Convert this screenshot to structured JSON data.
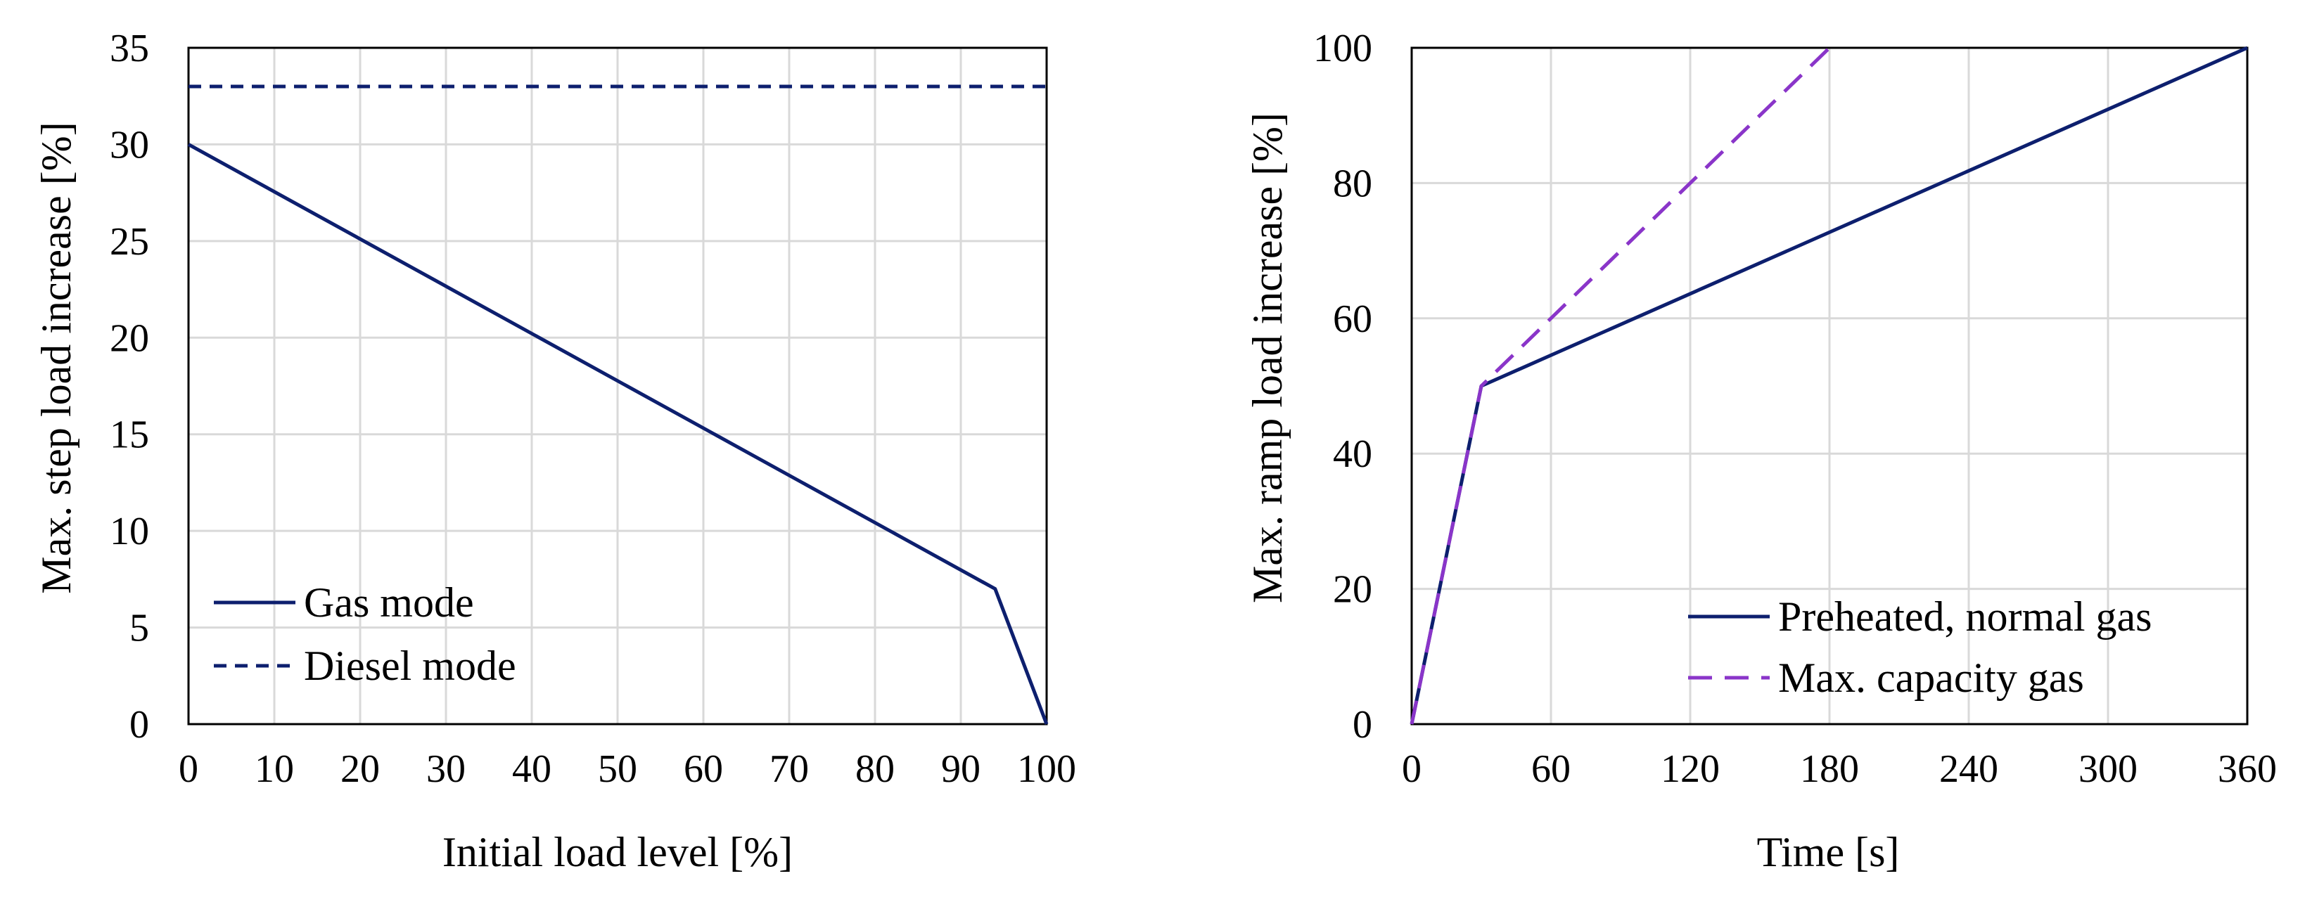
{
  "colors": {
    "grid": "#d9d9d9",
    "axis": "#000000",
    "navy": "#0d1f6e",
    "purple": "#8a35c9"
  },
  "chart_data": [
    {
      "type": "line",
      "title": "",
      "xlabel": "Initial load level [%]",
      "ylabel": "Max. step load increase [%]",
      "xlim": [
        0,
        100
      ],
      "ylim": [
        0,
        35
      ],
      "xticks": [
        0,
        10,
        20,
        30,
        40,
        50,
        60,
        70,
        80,
        90,
        100
      ],
      "yticks": [
        0,
        5,
        10,
        15,
        20,
        25,
        30,
        35
      ],
      "grid": true,
      "legend_position": "bottom-left",
      "series": [
        {
          "name": "Gas mode",
          "style": "solid",
          "color": "#0d1f6e",
          "points": [
            [
              0,
              30
            ],
            [
              94,
              7
            ],
            [
              100,
              0
            ]
          ]
        },
        {
          "name": "Diesel mode",
          "style": "dashed",
          "color": "#0d1f6e",
          "points": [
            [
              0,
              33
            ],
            [
              100,
              33
            ]
          ]
        }
      ]
    },
    {
      "type": "line",
      "title": "",
      "xlabel": "Time [s]",
      "ylabel": "Max. ramp load increase [%]",
      "xlim": [
        0,
        360
      ],
      "ylim": [
        0,
        100
      ],
      "xticks": [
        0,
        60,
        120,
        180,
        240,
        300,
        360
      ],
      "yticks": [
        0,
        20,
        40,
        60,
        80,
        100
      ],
      "grid": true,
      "legend_position": "bottom-right",
      "series": [
        {
          "name": "Preheated, normal gas",
          "style": "solid",
          "color": "#0d1f6e",
          "points": [
            [
              0,
              0
            ],
            [
              30,
              50
            ],
            [
              360,
              100
            ]
          ]
        },
        {
          "name": "Max. capacity gas",
          "style": "dashed",
          "color": "#8a35c9",
          "points": [
            [
              0,
              0
            ],
            [
              30,
              50
            ],
            [
              180,
              100
            ]
          ]
        }
      ]
    }
  ]
}
